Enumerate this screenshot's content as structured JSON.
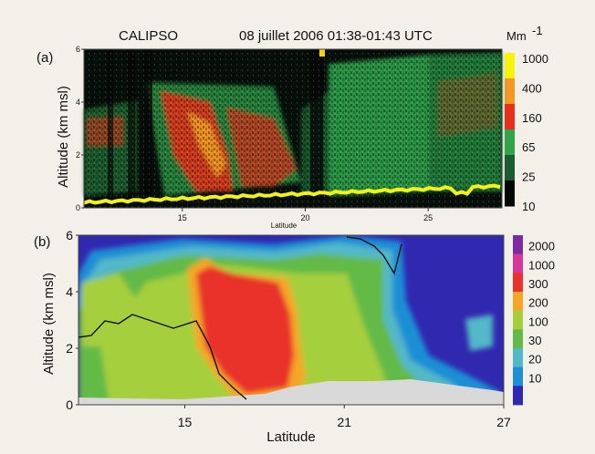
{
  "chart_data": [
    {
      "type": "heatmap",
      "panel_label": "(a)",
      "title_left": "CALIPSO",
      "title_right": "08 juillet 2006 01:38-01:43  UTC",
      "ylabel": "Altitude (km msl)",
      "xlabel": "Latitude",
      "xlim": [
        11,
        28
      ],
      "ylim": [
        0,
        6
      ],
      "x_ticks": [
        "15",
        "20",
        "25"
      ],
      "y_ticks": [
        "0",
        "2",
        "4",
        "6"
      ],
      "colorbar_unit": "Mm",
      "colorbar_exponent": "-1",
      "colorbar_ticks": [
        "1000",
        "400",
        "160",
        "65",
        "25",
        "10"
      ],
      "colorbar_colors": [
        "#f6f30c",
        "#f09a24",
        "#e53119",
        "#31a44a",
        "#1d5a30",
        "#060808"
      ],
      "ground_line_color": "#f2f11a"
    },
    {
      "type": "heatmap",
      "panel_label": "(b)",
      "ylabel": "Altitude (km msl)",
      "xlabel": "Latitude",
      "xlim": [
        11,
        27
      ],
      "ylim": [
        0,
        6
      ],
      "x_ticks": [
        "15",
        "21",
        "27"
      ],
      "y_ticks": [
        "0",
        "2",
        "4",
        "6"
      ],
      "colorbar_ticks": [
        "2000",
        "1000",
        "300",
        "200",
        "100",
        "30",
        "20",
        "10"
      ],
      "colorbar_colors": [
        "#7b2ca3",
        "#d6379c",
        "#e8332b",
        "#f5a627",
        "#a6cf3e",
        "#63ba47",
        "#52b8c8",
        "#1e8fd4",
        "#3128b0"
      ],
      "terrain_color": "#d9d9d9"
    }
  ]
}
